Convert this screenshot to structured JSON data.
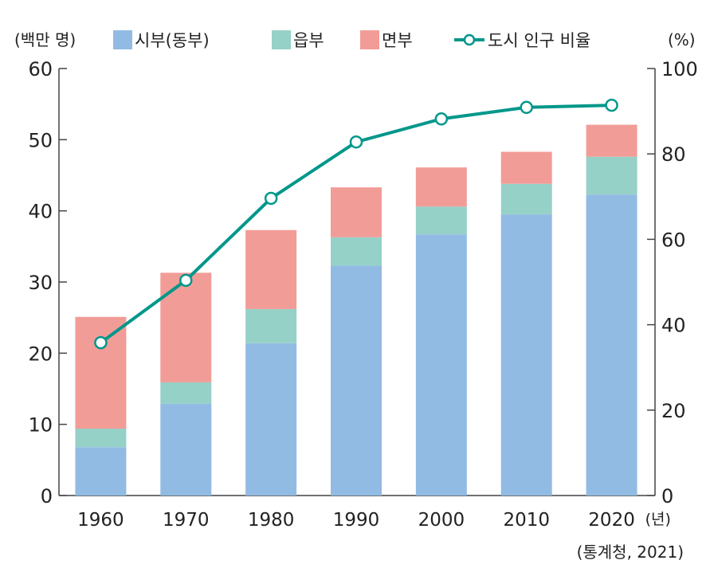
{
  "chart_data": {
    "type": "bar",
    "stacked": true,
    "categories": [
      "1960",
      "1970",
      "1980",
      "1990",
      "2000",
      "2010",
      "2020"
    ],
    "x_unit": "(년)",
    "ylabel_left": "(백만 명)",
    "ylabel_right": "(%)",
    "ylim_left": [
      0,
      60
    ],
    "ylim_right": [
      0,
      100
    ],
    "yticks_left": [
      0,
      10,
      20,
      30,
      40,
      50,
      60
    ],
    "yticks_right": [
      0,
      20,
      40,
      60,
      80,
      100
    ],
    "legend_position": "top",
    "grid": false,
    "series": [
      {
        "name": "시부(동부)",
        "color": "#92bbe4",
        "axis": "left",
        "values": [
          6.8,
          12.9,
          21.4,
          32.3,
          36.7,
          39.5,
          42.3
        ]
      },
      {
        "name": "읍부",
        "color": "#96d1c8",
        "axis": "left",
        "values": [
          2.6,
          3.0,
          4.8,
          4.0,
          3.9,
          4.3,
          5.3
        ]
      },
      {
        "name": "면부",
        "color": "#f29c97",
        "axis": "left",
        "values": [
          15.7,
          15.4,
          11.1,
          7.0,
          5.5,
          4.5,
          4.5
        ]
      },
      {
        "name": "도시 인구 비율",
        "type": "line",
        "color": "#00978a",
        "axis": "right",
        "values": [
          35.8,
          50.4,
          69.6,
          82.8,
          88.2,
          90.9,
          91.4
        ]
      }
    ],
    "source": "(통계청, 2021)"
  }
}
